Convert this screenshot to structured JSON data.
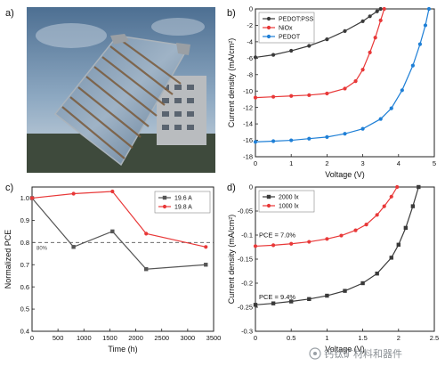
{
  "panel_labels": [
    "a)",
    "b)",
    "c)",
    "d)"
  ],
  "watermark": {
    "text": "钙钛矿材料和器件"
  },
  "photo": {
    "description_icon": "solar-module-photo"
  },
  "chart_data": [
    {
      "panel": "b)",
      "type": "line",
      "xlabel": "Voltage (V)",
      "ylabel": "Current density (mA/cm²)",
      "xlim": [
        0,
        5
      ],
      "ylim": [
        -18,
        0
      ],
      "xticks": [
        "0",
        "1",
        "2",
        "3",
        "4",
        "5"
      ],
      "yticks": [
        "0",
        "-2",
        "-4",
        "-6",
        "-8",
        "-10",
        "-12",
        "-14",
        "-16",
        "-18"
      ],
      "grid": false,
      "legend": "top-left",
      "series": [
        {
          "name": "PEDOT:PSS",
          "color": "#3a3a3a",
          "marker": "circle",
          "x": [
            0,
            0.5,
            1,
            1.5,
            2,
            2.5,
            3,
            3.2,
            3.4,
            3.5
          ],
          "y": [
            -5.9,
            -5.6,
            -5.1,
            -4.5,
            -3.7,
            -2.7,
            -1.5,
            -0.9,
            -0.3,
            0
          ]
        },
        {
          "name": "NiOx",
          "color": "#e83838",
          "marker": "circle",
          "x": [
            0,
            0.5,
            1,
            1.5,
            2,
            2.5,
            2.8,
            3.0,
            3.2,
            3.35,
            3.5,
            3.6
          ],
          "y": [
            -10.8,
            -10.7,
            -10.6,
            -10.5,
            -10.3,
            -9.7,
            -8.8,
            -7.4,
            -5.3,
            -3.5,
            -1.4,
            0
          ]
        },
        {
          "name": "PEDOT",
          "color": "#1e7fd6",
          "marker": "circle",
          "x": [
            0,
            0.5,
            1,
            1.5,
            2,
            2.5,
            3,
            3.5,
            3.8,
            4.1,
            4.4,
            4.6,
            4.75,
            4.85
          ],
          "y": [
            -16.2,
            -16.1,
            -16.0,
            -15.8,
            -15.6,
            -15.2,
            -14.6,
            -13.4,
            -12.1,
            -9.9,
            -6.9,
            -4.3,
            -2.0,
            0
          ]
        }
      ]
    },
    {
      "panel": "c)",
      "type": "line",
      "xlabel": "Time (h)",
      "ylabel": "Normalized PCE",
      "xlim": [
        0,
        3500
      ],
      "ylim": [
        0.4,
        1.05
      ],
      "xticks": [
        "0",
        "500",
        "1000",
        "1500",
        "2000",
        "2500",
        "3000",
        "3500"
      ],
      "yticks": [
        "0.4",
        "0.5",
        "0.6",
        "0.7",
        "0.8",
        "0.9",
        "1.0"
      ],
      "grid": false,
      "legend": "top-right",
      "reference_line": {
        "y": 0.8,
        "label": "80%"
      },
      "series": [
        {
          "name": "19.6 A",
          "color": "#555555",
          "marker": "square",
          "x": [
            0,
            800,
            1550,
            2200,
            3350
          ],
          "y": [
            1.0,
            0.78,
            0.85,
            0.68,
            0.7
          ]
        },
        {
          "name": "19.8 A",
          "color": "#e83838",
          "marker": "circle",
          "x": [
            0,
            800,
            1550,
            2200,
            3350
          ],
          "y": [
            1.0,
            1.02,
            1.03,
            0.84,
            0.78
          ]
        }
      ]
    },
    {
      "panel": "d)",
      "type": "line",
      "xlabel": "Voltage (V)",
      "ylabel": "Current density (mA/cm²)",
      "xlim": [
        0,
        2.5
      ],
      "ylim": [
        -0.3,
        0
      ],
      "xticks": [
        "0",
        "0.5",
        "1",
        "1.5",
        "2",
        "2.5"
      ],
      "yticks": [
        "0",
        "-0.05",
        "-0.1",
        "-0.15",
        "-0.2",
        "-0.25",
        "-0.3"
      ],
      "grid": false,
      "legend": "top-left",
      "annotations": [
        {
          "text": "PCE = 7.0%",
          "x": 0.05,
          "y": -0.105
        },
        {
          "text": "PCE = 9.4%",
          "x": 0.05,
          "y": -0.233
        }
      ],
      "series": [
        {
          "name": "2000 lx",
          "color": "#3a3a3a",
          "marker": "square",
          "x": [
            0,
            0.25,
            0.5,
            0.75,
            1.0,
            1.25,
            1.5,
            1.7,
            1.9,
            2.0,
            2.1,
            2.2,
            2.28
          ],
          "y": [
            -0.245,
            -0.242,
            -0.238,
            -0.233,
            -0.226,
            -0.216,
            -0.2,
            -0.18,
            -0.147,
            -0.12,
            -0.085,
            -0.04,
            0
          ]
        },
        {
          "name": "1000 lx",
          "color": "#e83838",
          "marker": "circle",
          "x": [
            0,
            0.25,
            0.5,
            0.75,
            1.0,
            1.2,
            1.4,
            1.55,
            1.7,
            1.8,
            1.9,
            1.98
          ],
          "y": [
            -0.123,
            -0.121,
            -0.118,
            -0.114,
            -0.108,
            -0.101,
            -0.09,
            -0.078,
            -0.058,
            -0.04,
            -0.02,
            0
          ]
        }
      ]
    }
  ]
}
